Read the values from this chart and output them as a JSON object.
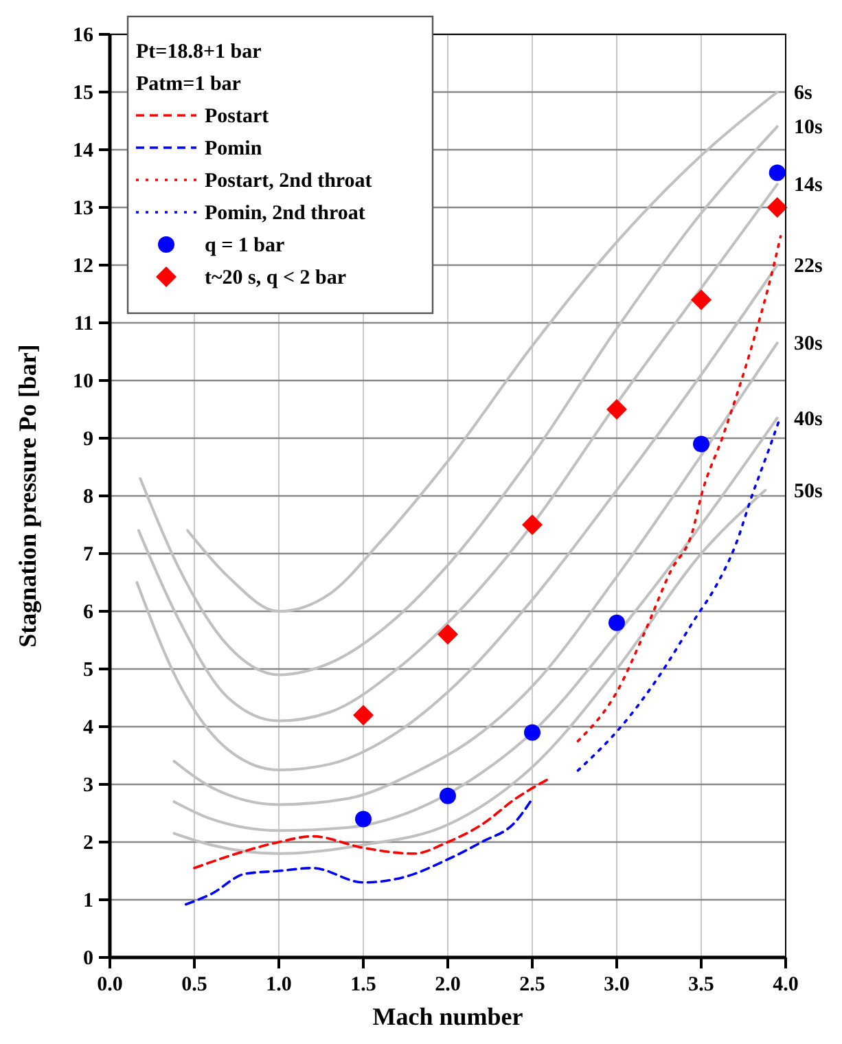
{
  "chart_data": {
    "type": "line",
    "xlabel": "Mach number",
    "ylabel": "Stagnation pressure Po [bar]",
    "xlim": [
      0,
      4
    ],
    "ylim": [
      0,
      16
    ],
    "xticks": [
      {
        "value": 0,
        "label": "0.0"
      },
      {
        "value": 0.5,
        "label": "0.5"
      },
      {
        "value": 1,
        "label": "1.0"
      },
      {
        "value": 1.5,
        "label": "1.5"
      },
      {
        "value": 2,
        "label": "2.0"
      },
      {
        "value": 2.5,
        "label": "2.5"
      },
      {
        "value": 3,
        "label": "3.0"
      },
      {
        "value": 3.5,
        "label": "3.5"
      },
      {
        "value": 4,
        "label": "4.0"
      }
    ],
    "yticks": [
      0,
      1,
      2,
      3,
      4,
      5,
      6,
      7,
      8,
      9,
      10,
      11,
      12,
      13,
      14,
      15,
      16
    ],
    "grid": true,
    "legend": "top left",
    "annotations": [
      "Pt=18.8+1 bar",
      "Patm=1 bar"
    ],
    "series": [
      {
        "name": "6s",
        "color": "#c0c0c0",
        "line_style": "solid",
        "x": [
          0.46,
          0.7,
          1.0,
          1.3,
          1.6,
          2.0,
          2.5,
          3.0,
          3.5,
          3.95
        ],
        "values": [
          7.4,
          6.6,
          6.0,
          6.3,
          7.2,
          8.6,
          10.6,
          12.4,
          13.9,
          15.0
        ]
      },
      {
        "name": "10s",
        "color": "#c0c0c0",
        "line_style": "solid",
        "x": [
          0.18,
          0.4,
          0.7,
          1.0,
          1.3,
          1.7,
          2.0,
          2.5,
          3.0,
          3.5,
          3.95
        ],
        "values": [
          8.3,
          6.8,
          5.4,
          4.9,
          5.1,
          5.9,
          6.8,
          8.7,
          10.9,
          12.9,
          14.4
        ]
      },
      {
        "name": "14s",
        "color": "#c0c0c0",
        "line_style": "solid",
        "x": [
          0.17,
          0.4,
          0.7,
          1.0,
          1.3,
          1.7,
          2.0,
          2.5,
          3.0,
          3.5,
          3.95
        ],
        "values": [
          7.4,
          5.9,
          4.5,
          4.1,
          4.25,
          5.0,
          5.8,
          7.5,
          9.6,
          11.6,
          13.4
        ]
      },
      {
        "name": "22s",
        "color": "#c0c0c0",
        "line_style": "solid",
        "x": [
          0.16,
          0.4,
          0.7,
          1.0,
          1.3,
          1.7,
          2.0,
          2.5,
          3.0,
          3.5,
          3.95
        ],
        "values": [
          6.5,
          4.8,
          3.6,
          3.25,
          3.35,
          3.9,
          4.6,
          6.2,
          8.1,
          10.1,
          12.0
        ]
      },
      {
        "name": "30s",
        "color": "#c0c0c0",
        "line_style": "solid",
        "x": [
          0.38,
          0.6,
          1.0,
          1.4,
          1.8,
          2.2,
          2.5,
          3.0,
          3.5,
          3.95
        ],
        "values": [
          3.4,
          2.95,
          2.65,
          2.75,
          3.2,
          3.9,
          4.7,
          6.6,
          8.7,
          10.65
        ]
      },
      {
        "name": "40s",
        "color": "#c0c0c0",
        "line_style": "solid",
        "x": [
          0.38,
          0.6,
          1.0,
          1.4,
          1.8,
          2.2,
          2.5,
          3.0,
          3.5,
          3.95
        ],
        "values": [
          2.7,
          2.4,
          2.2,
          2.25,
          2.55,
          3.2,
          3.9,
          5.6,
          7.5,
          9.35
        ]
      },
      {
        "name": "50s",
        "color": "#c0c0c0",
        "line_style": "solid",
        "x": [
          0.38,
          0.6,
          1.0,
          1.5,
          2.0,
          2.5,
          3.0,
          3.5,
          3.88
        ],
        "values": [
          2.15,
          1.95,
          1.8,
          1.95,
          2.3,
          3.3,
          5.0,
          7.0,
          8.1
        ]
      },
      {
        "name": "Postart",
        "color": "#ff0000",
        "line_style": "dashed",
        "x": [
          0.5,
          0.75,
          1.0,
          1.2,
          1.5,
          1.8,
          2.0,
          2.2,
          2.4,
          2.6
        ],
        "values": [
          1.55,
          1.8,
          2.0,
          2.1,
          1.9,
          1.8,
          2.0,
          2.3,
          2.75,
          3.1
        ]
      },
      {
        "name": "Pomin",
        "color": "#0000ff",
        "line_style": "dashed",
        "x": [
          0.45,
          0.6,
          0.8,
          1.0,
          1.2,
          1.5,
          1.75,
          2.0,
          2.2,
          2.4,
          2.5
        ],
        "values": [
          0.92,
          1.1,
          1.45,
          1.5,
          1.55,
          1.3,
          1.4,
          1.7,
          2.0,
          2.35,
          2.75
        ]
      },
      {
        "name": "Postart, 2nd throat",
        "color": "#ff0000",
        "line_style": "dotted",
        "x": [
          2.77,
          3.0,
          3.16,
          3.32,
          3.45,
          3.5,
          3.63,
          3.8,
          3.93,
          3.97
        ],
        "values": [
          3.75,
          4.6,
          5.6,
          6.7,
          7.4,
          8.0,
          9.05,
          10.6,
          12.0,
          12.5
        ]
      },
      {
        "name": "Pomin, 2nd throat",
        "color": "#0000ff",
        "line_style": "dotted",
        "x": [
          2.77,
          3.04,
          3.24,
          3.47,
          3.58,
          3.71,
          3.8,
          3.9,
          3.96
        ],
        "values": [
          3.24,
          4.05,
          4.83,
          5.9,
          6.4,
          7.2,
          8.0,
          8.8,
          9.3
        ]
      },
      {
        "name": "q = 1 bar",
        "type": "scatter",
        "marker": "circle",
        "color": "#0000ff",
        "x": [
          1.5,
          2.0,
          2.5,
          3.0,
          3.5,
          3.95
        ],
        "values": [
          2.4,
          2.8,
          3.9,
          5.8,
          8.9,
          13.6
        ]
      },
      {
        "name": "t~20 s, q < 2 bar",
        "type": "scatter",
        "marker": "diamond",
        "color": "#ff0000",
        "x": [
          1.5,
          2.0,
          2.5,
          3.0,
          3.5,
          3.95
        ],
        "values": [
          4.2,
          5.6,
          7.5,
          9.5,
          11.4,
          13.0
        ]
      }
    ]
  }
}
